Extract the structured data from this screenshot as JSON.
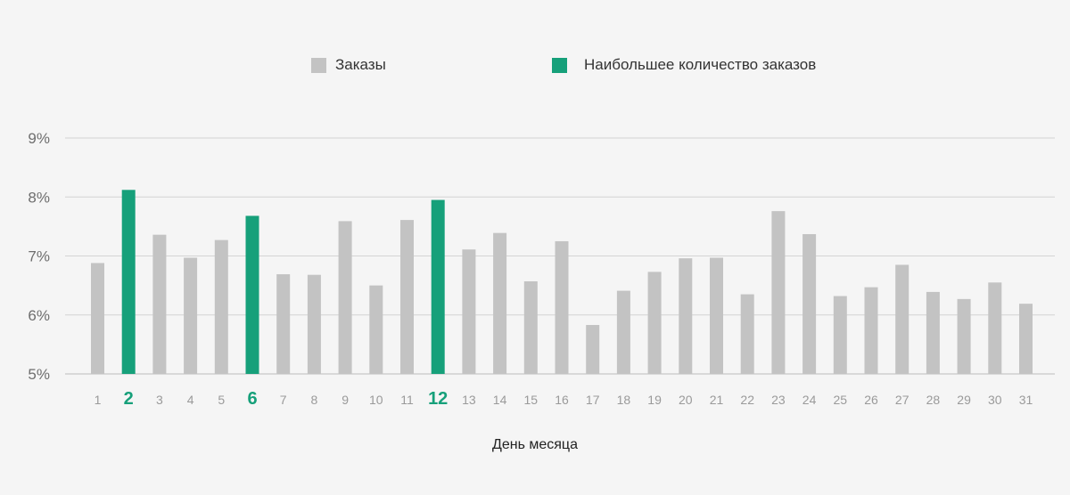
{
  "legend": [
    {
      "label": "Заказы",
      "color": "#c3c3c3"
    },
    {
      "label": "Наибольшее количество заказов",
      "color": "#16a07a"
    }
  ],
  "chart_data": {
    "type": "bar",
    "xlabel": "День месяца",
    "ylabel": "",
    "ylim": [
      5,
      9
    ],
    "yticks": [
      "5%",
      "6%",
      "7%",
      "8%",
      "9%"
    ],
    "grid": true,
    "legend_position": "top",
    "categories": [
      "1",
      "2",
      "3",
      "4",
      "5",
      "6",
      "7",
      "8",
      "9",
      "10",
      "11",
      "12",
      "13",
      "14",
      "15",
      "16",
      "17",
      "18",
      "19",
      "20",
      "21",
      "22",
      "23",
      "24",
      "25",
      "26",
      "27",
      "28",
      "29",
      "30",
      "31"
    ],
    "values": [
      6.88,
      8.12,
      7.36,
      6.97,
      7.27,
      7.68,
      6.69,
      6.68,
      7.59,
      6.5,
      7.61,
      7.95,
      7.11,
      7.39,
      6.57,
      7.25,
      5.83,
      6.41,
      6.73,
      6.96,
      6.97,
      6.35,
      7.76,
      7.37,
      6.32,
      6.47,
      6.85,
      6.39,
      6.27,
      6.55,
      6.19
    ],
    "highlighted": [
      "2",
      "6",
      "12"
    ],
    "colors": {
      "default": "#c3c3c3",
      "highlight": "#16a07a",
      "grid": "#d4d4d4",
      "axis_text": "#6e6e6e",
      "tick_text": "#9a9a9a"
    }
  }
}
